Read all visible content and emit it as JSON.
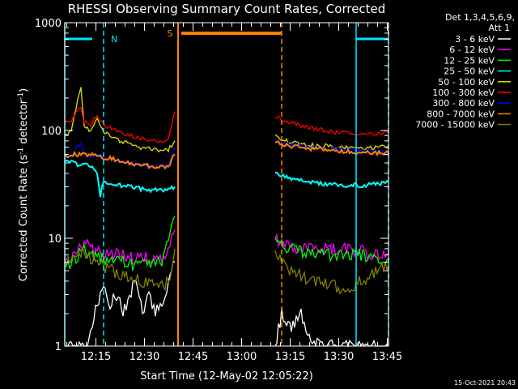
{
  "chart_data": {
    "type": "line",
    "title": "RHESSI Observing Summary Count Rates, Corrected",
    "xlabel": "Start Time (12-May-02 12:05:22)",
    "ylabel": "Corrected Count Rate (s⁻¹ detector⁻¹)",
    "ylabel_main": "Corrected Count Rate (s",
    "ylabel_sup1": "-1",
    "ylabel_mid": " detector",
    "ylabel_sup2": "-1",
    "ylabel_end": ")",
    "yscale": "log",
    "ylim": [
      1,
      1000
    ],
    "xlim": [
      "12:05:22",
      "13:45:22"
    ],
    "x_ticks": [
      "12:15",
      "12:30",
      "12:45",
      "13:00",
      "13:15",
      "13:30",
      "13:45"
    ],
    "y_ticks": [
      "1",
      "10",
      "100",
      "1000"
    ],
    "legend_header": [
      "Det 1,3,4,5,6,9,",
      "Att 1"
    ],
    "legend_position": "right",
    "footer_date": "15-Oct-2021 20:43",
    "markers": [
      {
        "label": "N",
        "color": "#00e5ff"
      },
      {
        "label": "S",
        "color": "#ff8000"
      }
    ],
    "colors": {
      "background": "#000000",
      "axes": "#ffffff",
      "night_lines": "#00e5ff",
      "saa_lines": "#ff8000"
    },
    "series": [
      {
        "name": "3 - 6 keV",
        "color": "#ffffff",
        "segments": [
          {
            "t": [
              0,
              7,
              9,
              11,
              12,
              14,
              16,
              18,
              20,
              22,
              24,
              26,
              28,
              30,
              32,
              34
            ],
            "v": [
              1,
              1,
              2,
              3,
              4,
              2.5,
              3,
              2,
              3,
              4,
              2,
              3,
              2,
              2.5,
              4,
              6
            ]
          },
          {
            "t": [
              65,
              67,
              70,
              73,
              76,
              80,
              84,
              88,
              92,
              96,
              100
            ],
            "v": [
              1,
              2,
              1.5,
              2,
              1.2,
              1,
              1,
              1,
              1,
              1,
              1
            ]
          }
        ]
      },
      {
        "name": "6 - 12 keV",
        "color": "#ff00ff",
        "segments": [
          {
            "t": [
              0,
              3,
              5,
              7,
              9,
              12,
              15,
              18,
              21,
              24,
              27,
              30,
              32,
              34
            ],
            "v": [
              6,
              7,
              8,
              9,
              8,
              7,
              7,
              7,
              6.5,
              6.5,
              6.5,
              6.5,
              8,
              12
            ]
          },
          {
            "t": [
              65,
              67,
              70,
              73,
              76,
              80,
              84,
              88,
              92,
              95,
              98,
              100
            ],
            "v": [
              10,
              9,
              8.5,
              8,
              8,
              8,
              8,
              8,
              7.5,
              7,
              7,
              7
            ]
          }
        ]
      },
      {
        "name": "12 - 25 keV",
        "color": "#00ff00",
        "segments": [
          {
            "t": [
              0,
              2,
              4,
              6,
              8,
              10,
              12,
              15,
              18,
              21,
              24,
              27,
              30,
              32,
              34
            ],
            "v": [
              5,
              6,
              7,
              8,
              7,
              6.5,
              6.5,
              6,
              6,
              5.5,
              5.5,
              5.5,
              6,
              9,
              16
            ]
          },
          {
            "t": [
              65,
              67,
              70,
              73,
              76,
              80,
              84,
              88,
              92,
              96,
              100
            ],
            "v": [
              9,
              8.5,
              8,
              7.5,
              7.5,
              7,
              7,
              7,
              7,
              6.5,
              6.5
            ]
          }
        ]
      },
      {
        "name": "25 - 50 keV",
        "color": "#00ffff",
        "segments": [
          {
            "t": [
              0,
              2,
              4,
              6,
              8,
              10,
              11,
              12,
              14,
              17,
              20,
              23,
              26,
              29,
              32,
              34
            ],
            "v": [
              53,
              52,
              48,
              50,
              46,
              40,
              25,
              34,
              33,
              31,
              30,
              29,
              28,
              28,
              28,
              30
            ]
          },
          {
            "t": [
              65,
              67,
              70,
              73,
              76,
              80,
              84,
              88,
              92,
              96,
              100
            ],
            "v": [
              42,
              38,
              36,
              34,
              33,
              32,
              31,
              31,
              31,
              32,
              33
            ]
          }
        ]
      },
      {
        "name": "50 - 100 keV",
        "color": "#e0e000",
        "segments": [
          {
            "t": [
              0,
              2,
              4,
              5,
              6,
              8,
              10,
              12,
              14,
              17,
              20,
              23,
              26,
              29,
              32,
              34
            ],
            "v": [
              90,
              100,
              190,
              260,
              110,
              100,
              130,
              95,
              90,
              80,
              75,
              70,
              68,
              66,
              66,
              80
            ]
          },
          {
            "t": [
              65,
              67,
              70,
              73,
              76,
              80,
              84,
              88,
              92,
              96,
              100
            ],
            "v": [
              90,
              82,
              78,
              75,
              73,
              72,
              70,
              70,
              69,
              70,
              72
            ]
          }
        ]
      },
      {
        "name": "100 - 300 keV",
        "color": "#ff0000",
        "segments": [
          {
            "t": [
              0,
              2,
              4,
              5,
              6,
              8,
              10,
              12,
              14,
              17,
              20,
              23,
              26,
              29,
              32,
              34
            ],
            "v": [
              120,
              125,
              150,
              165,
              120,
              115,
              140,
              112,
              105,
              95,
              90,
              85,
              80,
              80,
              82,
              150
            ]
          },
          {
            "t": [
              65,
              67,
              70,
              73,
              76,
              80,
              84,
              88,
              92,
              96,
              100
            ],
            "v": [
              135,
              125,
              118,
              110,
              105,
              100,
              96,
              94,
              92,
              92,
              96
            ]
          }
        ]
      },
      {
        "name": "300 - 800 keV",
        "color": "#0000ff",
        "segments": [
          {
            "t": [
              0,
              2,
              4,
              5,
              6,
              8,
              10,
              12,
              14,
              17,
              20,
              23,
              26,
              29,
              32,
              34
            ],
            "v": [
              55,
              58,
              70,
              75,
              62,
              55,
              60,
              56,
              55,
              52,
              50,
              48,
              47,
              47,
              48,
              70
            ]
          },
          {
            "t": [
              65,
              67,
              70,
              73,
              76,
              80,
              84,
              88,
              92,
              96,
              100
            ],
            "v": [
              80,
              76,
              74,
              72,
              70,
              68,
              67,
              66,
              65,
              63,
              62
            ]
          }
        ]
      },
      {
        "name": "800 - 7000 keV",
        "color": "#ff8000",
        "segments": [
          {
            "t": [
              0,
              2,
              4,
              6,
              8,
              10,
              12,
              14,
              17,
              20,
              23,
              26,
              29,
              32,
              34
            ],
            "v": [
              58,
              59,
              60,
              60,
              60,
              58,
              56,
              55,
              52,
              50,
              48,
              47,
              46,
              46,
              60
            ]
          },
          {
            "t": [
              65,
              67,
              70,
              73,
              76,
              80,
              84,
              88,
              92,
              96,
              100
            ],
            "v": [
              78,
              74,
              72,
              70,
              68,
              66,
              64,
              63,
              62,
              62,
              62
            ]
          }
        ]
      },
      {
        "name": "7000 - 15000 keV",
        "color": "#808000",
        "segments": [
          {
            "t": [
              0,
              2,
              4,
              6,
              8,
              10,
              12,
              15,
              18,
              21,
              24,
              27,
              30,
              32,
              34
            ],
            "v": [
              6,
              6.5,
              7,
              7.5,
              6.5,
              6,
              5.5,
              5,
              4.5,
              4.5,
              4,
              4,
              3.5,
              4,
              8
            ]
          },
          {
            "t": [
              65,
              67,
              70,
              73,
              76,
              80,
              84,
              88,
              92,
              96,
              100
            ],
            "v": [
              7,
              6,
              5,
              4.5,
              4,
              3.8,
              3.5,
              3.5,
              4,
              5,
              5.5
            ]
          }
        ]
      }
    ],
    "night_intervals": [
      {
        "start_t": 0,
        "end_t": 12,
        "label": "N"
      },
      {
        "start_t": 90,
        "end_t": 100,
        "label": ""
      }
    ],
    "saa_interval": {
      "start_t": 35,
      "end_t": 67,
      "label": "S"
    }
  }
}
